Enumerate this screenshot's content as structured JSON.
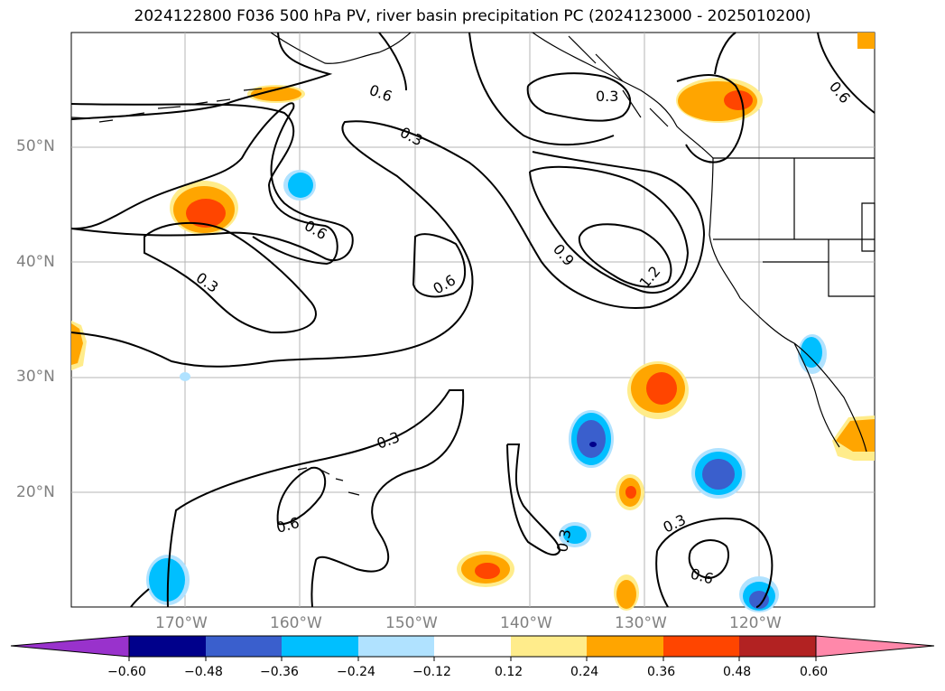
{
  "title": "2024122800 F036 500 hPa PV, river basin precipitation PC (2024123000 - 2025010200)",
  "lat_labels": [
    "50°N",
    "40°N",
    "30°N",
    "20°N"
  ],
  "lon_labels": [
    "170°W",
    "160°W",
    "150°W",
    "140°W",
    "130°W",
    "120°W"
  ],
  "contour_labels": [
    "0.6",
    "0.3",
    "0.6",
    "0.3",
    "0.6",
    "0.9",
    "1.2",
    "0.3",
    "0.6",
    "0.3",
    "0.3",
    "0.6",
    "0.6",
    "0.3"
  ],
  "colorbar": {
    "ticks": [
      "−0.60",
      "−0.48",
      "−0.36",
      "−0.24",
      "−0.12",
      "0.12",
      "0.24",
      "0.36",
      "0.48",
      "0.60"
    ],
    "colors": [
      "#9932cc",
      "#00008b",
      "#3a5fcd",
      "#00bfff",
      "#b0e2ff",
      "#ffffff",
      "#ffec8b",
      "#ffa500",
      "#ff4500",
      "#b22222",
      "#ff88aa"
    ]
  }
}
